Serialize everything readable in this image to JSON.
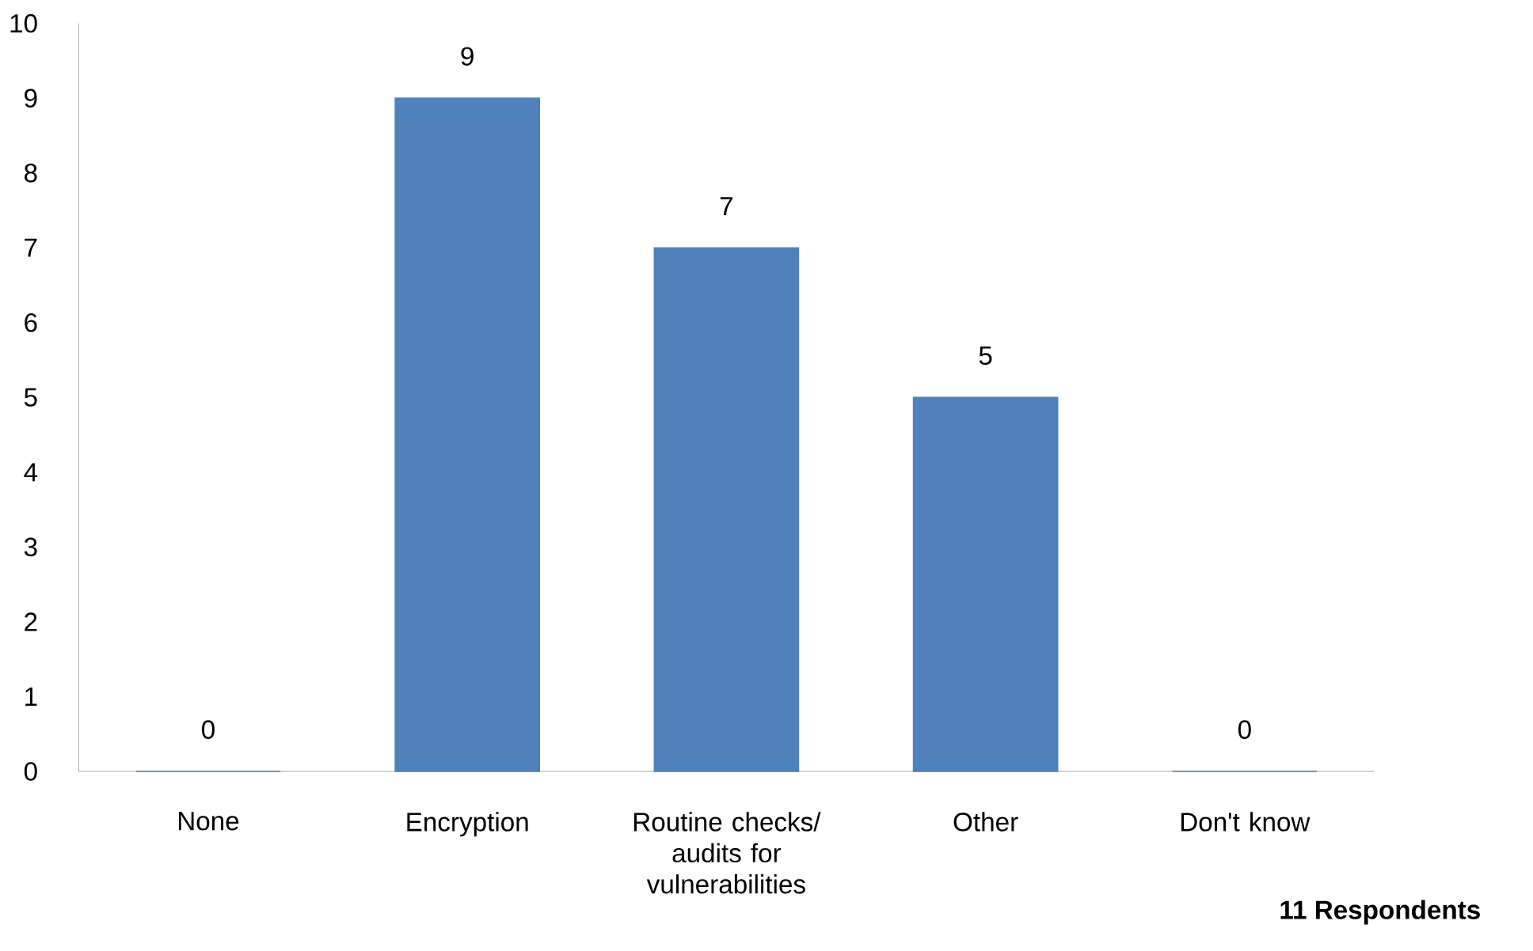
{
  "chart_data": {
    "type": "bar",
    "categories": [
      "None",
      "Encryption",
      "Routine checks/ audits for vulnerabilities",
      "Other",
      "Don't know"
    ],
    "values": [
      0,
      9,
      7,
      5,
      0
    ],
    "color": "#4f81bd",
    "ylim": [
      0,
      10
    ],
    "yticks": [
      0,
      1,
      2,
      3,
      4,
      5,
      6,
      7,
      8,
      9,
      10
    ],
    "data_labels": true,
    "grid": false,
    "annotations": [
      "11 Respondents"
    ]
  }
}
